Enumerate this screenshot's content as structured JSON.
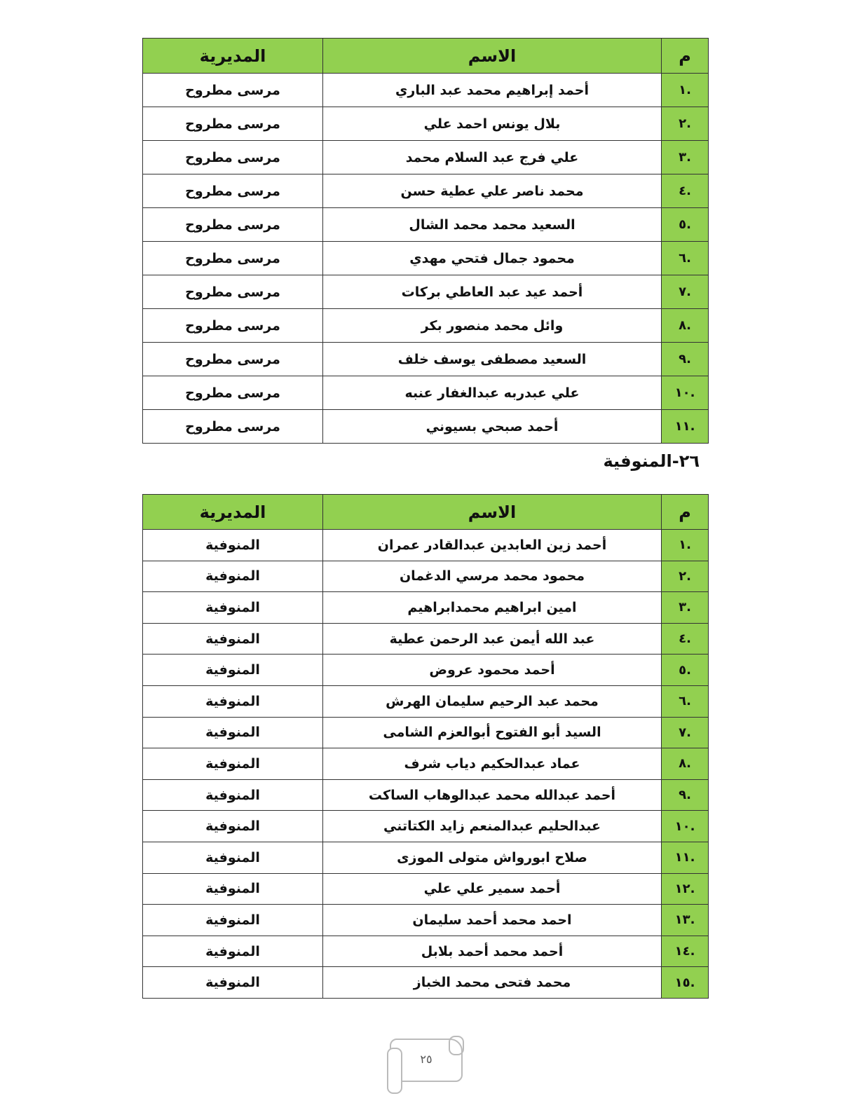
{
  "table1": {
    "headers": {
      "num": "م",
      "name": "الاسم",
      "directorate": "المديرية"
    },
    "rows": [
      {
        "num": ".١",
        "name": "أحمد إبراهيم محمد عبد الباري",
        "directorate": "مرسى مطروح"
      },
      {
        "num": ".٢",
        "name": "بلال يونس احمد علي",
        "directorate": "مرسى مطروح"
      },
      {
        "num": ".٣",
        "name": "علي فرج عبد السلام محمد",
        "directorate": "مرسى مطروح"
      },
      {
        "num": ".٤",
        "name": "محمد ناصر علي عطية حسن",
        "directorate": "مرسى مطروح"
      },
      {
        "num": ".٥",
        "name": "السعيد محمد محمد الشال",
        "directorate": "مرسى مطروح"
      },
      {
        "num": ".٦",
        "name": "محمود جمال فتحي مهدي",
        "directorate": "مرسى مطروح"
      },
      {
        "num": ".٧",
        "name": "أحمد عيد عبد العاطي بركات",
        "directorate": "مرسى مطروح"
      },
      {
        "num": ".٨",
        "name": "وائل محمد منصور بكر",
        "directorate": "مرسى مطروح"
      },
      {
        "num": ".٩",
        "name": "السعيد مصطفى يوسف خلف",
        "directorate": "مرسى مطروح"
      },
      {
        "num": ".١٠",
        "name": "علي عبدربه عبدالغفار عنبه",
        "directorate": "مرسى مطروح"
      },
      {
        "num": ".١١",
        "name": "أحمد صبحي بسيوني",
        "directorate": "مرسى مطروح"
      }
    ]
  },
  "section_heading": "٢٦-المنوفية",
  "table2": {
    "headers": {
      "num": "م",
      "name": "الاسم",
      "directorate": "المديرية"
    },
    "rows": [
      {
        "num": ".١",
        "name": "أحمد زين العابدين عبدالقادر عمران",
        "directorate": "المنوفية"
      },
      {
        "num": ".٢",
        "name": "محمود محمد مرسي الدغمان",
        "directorate": "المنوفية"
      },
      {
        "num": ".٣",
        "name": "امين ابراهيم محمدابراهيم",
        "directorate": "المنوفية"
      },
      {
        "num": ".٤",
        "name": "عبد الله أيمن عبد الرحمن عطية",
        "directorate": "المنوفية"
      },
      {
        "num": ".٥",
        "name": "أحمد محمود عروض",
        "directorate": "المنوفية"
      },
      {
        "num": ".٦",
        "name": "محمد عبد الرحيم سليمان الهرش",
        "directorate": "المنوفية"
      },
      {
        "num": ".٧",
        "name": "السيد أبو الفتوح أبوالعزم الشامى",
        "directorate": "المنوفية"
      },
      {
        "num": ".٨",
        "name": "عماد عبدالحكيم دياب شرف",
        "directorate": "المنوفية"
      },
      {
        "num": ".٩",
        "name": "أحمد عبدالله محمد عبدالوهاب الساكت",
        "directorate": "المنوفية"
      },
      {
        "num": ".١٠",
        "name": "عبدالحليم عبدالمنعم زايد الكتاتني",
        "directorate": "المنوفية"
      },
      {
        "num": ".١١",
        "name": "صلاح ابورواش متولى الموزى",
        "directorate": "المنوفية"
      },
      {
        "num": ".١٢",
        "name": "أحمد سمير علي علي",
        "directorate": "المنوفية"
      },
      {
        "num": ".١٣",
        "name": "احمد محمد أحمد سليمان",
        "directorate": "المنوفية"
      },
      {
        "num": ".١٤",
        "name": "أحمد محمد أحمد بلابل",
        "directorate": "المنوفية"
      },
      {
        "num": ".١٥",
        "name": "محمد فتحى محمد الخباز",
        "directorate": "المنوفية"
      }
    ]
  },
  "page_number": "٢٥",
  "colors": {
    "header_green": "#92d050",
    "border": "#333333"
  }
}
